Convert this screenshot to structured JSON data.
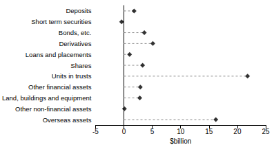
{
  "chart_data": {
    "type": "dot",
    "orientation": "horizontal",
    "xlabel": "$billion",
    "categories": [
      "Deposits",
      "Short term securities",
      "Bonds, etc.",
      "Derivatives",
      "Loans and placements",
      "Shares",
      "Units in trusts",
      "Other financial assets",
      "Land, buildings and equipment",
      "Other non-financial assets",
      "Overseas assets"
    ],
    "values": [
      1.8,
      -0.4,
      3.6,
      5.1,
      1.0,
      3.3,
      21.8,
      2.9,
      2.8,
      0.1,
      16.2
    ],
    "color": "#000000",
    "marker": "diamond",
    "line_style": "dashed",
    "xlim": [
      -5,
      25
    ],
    "xticks": [
      -5,
      0,
      5,
      10,
      15,
      20,
      25
    ],
    "grid": false
  }
}
